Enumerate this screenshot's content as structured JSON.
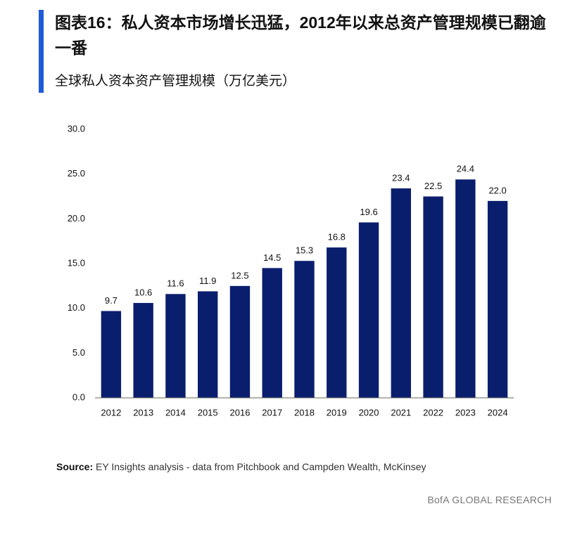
{
  "chart_data": {
    "type": "bar",
    "title": "图表16：私人资本市场增长迅猛，2012年以来总资产管理规模已翻逾一番",
    "subtitle": "全球私人资本资产管理规模（万亿美元）",
    "categories": [
      "2012",
      "2013",
      "2014",
      "2015",
      "2016",
      "2017",
      "2018",
      "2019",
      "2020",
      "2021",
      "2022",
      "2023",
      "2024"
    ],
    "values": [
      9.7,
      10.6,
      11.6,
      11.9,
      12.5,
      14.5,
      15.3,
      16.8,
      19.6,
      23.4,
      22.5,
      24.4,
      22.0
    ],
    "value_labels": [
      "9.7",
      "10.6",
      "11.6",
      "11.9",
      "12.5",
      "14.5",
      "15.3",
      "16.8",
      "19.6",
      "23.4",
      "22.5",
      "24.4",
      "22.0"
    ],
    "color": "#0a1e6e",
    "ylim": [
      0,
      30
    ],
    "yticks": [
      {
        "value": 0,
        "label": "0.0"
      },
      {
        "value": 5,
        "label": "5.0"
      },
      {
        "value": 10,
        "label": "10.0"
      },
      {
        "value": 15,
        "label": "15.0"
      },
      {
        "value": 20,
        "label": "20.0"
      },
      {
        "value": 25,
        "label": "25.0"
      },
      {
        "value": 30,
        "label": "30.0"
      }
    ],
    "grid": false,
    "source_label": "Source:",
    "source": "EY Insights analysis - data from Pitchbook and Campden Wealth, McKinsey",
    "footer": "BofA GLOBAL RESEARCH"
  }
}
